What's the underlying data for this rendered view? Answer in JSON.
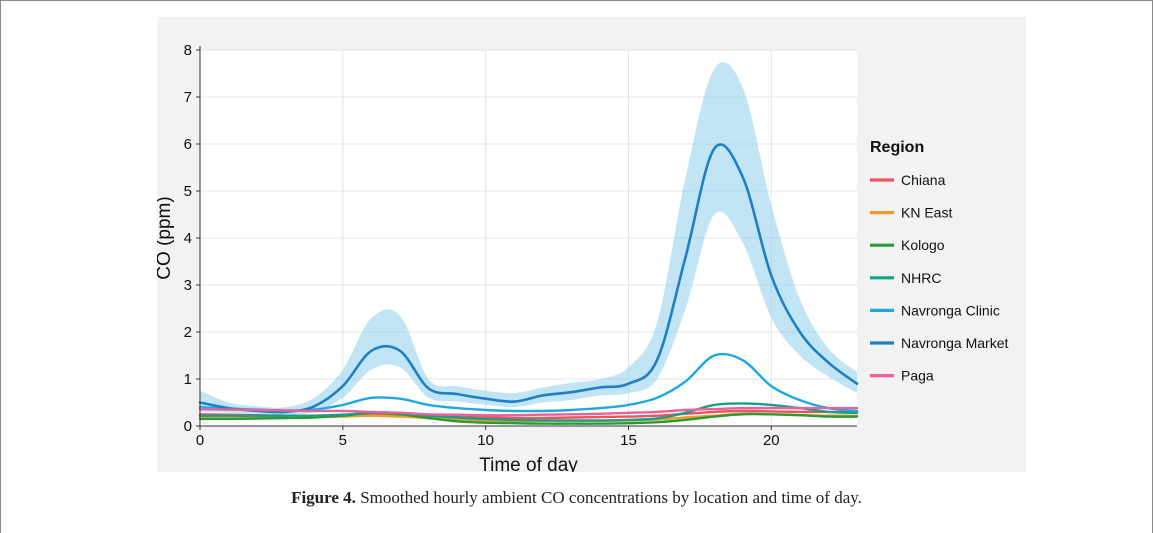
{
  "caption": {
    "label": "Figure 4.",
    "text": "Smoothed hourly ambient CO concentrations by location and time of day."
  },
  "chart_data": {
    "type": "line",
    "xlabel": "Time of day",
    "ylabel": "CO (ppm)",
    "xlim": [
      0,
      23
    ],
    "ylim": [
      0,
      8
    ],
    "x_ticks": [
      0,
      5,
      10,
      15,
      20
    ],
    "y_ticks": [
      0,
      1,
      2,
      3,
      4,
      5,
      6,
      7,
      8
    ],
    "grid": true,
    "legend": {
      "title": "Region",
      "position": "right"
    },
    "series": [
      {
        "name": "Chiana",
        "color": "#f0515e",
        "x": [
          0,
          1,
          2,
          3,
          4,
          5,
          6,
          7,
          8,
          9,
          10,
          11,
          12,
          13,
          14,
          15,
          16,
          17,
          18,
          19,
          20,
          21,
          22,
          23
        ],
        "y": [
          0.25,
          0.24,
          0.23,
          0.22,
          0.22,
          0.23,
          0.24,
          0.23,
          0.22,
          0.2,
          0.18,
          0.17,
          0.17,
          0.18,
          0.19,
          0.2,
          0.22,
          0.26,
          0.3,
          0.32,
          0.31,
          0.3,
          0.3,
          0.3
        ]
      },
      {
        "name": "KN East",
        "color": "#f09a2b",
        "x": [
          0,
          1,
          2,
          3,
          4,
          5,
          6,
          7,
          8,
          9,
          10,
          11,
          12,
          13,
          14,
          15,
          16,
          17,
          18,
          19,
          20,
          21,
          22,
          23
        ],
        "y": [
          0.2,
          0.2,
          0.2,
          0.2,
          0.2,
          0.2,
          0.22,
          0.2,
          0.17,
          0.14,
          0.12,
          0.11,
          0.11,
          0.11,
          0.11,
          0.12,
          0.14,
          0.18,
          0.22,
          0.26,
          0.25,
          0.23,
          0.22,
          0.22
        ]
      },
      {
        "name": "Kologo",
        "color": "#2a9a33",
        "x": [
          0,
          1,
          2,
          3,
          4,
          5,
          6,
          7,
          8,
          9,
          10,
          11,
          12,
          13,
          14,
          15,
          16,
          17,
          18,
          19,
          20,
          21,
          22,
          23
        ],
        "y": [
          0.15,
          0.15,
          0.16,
          0.17,
          0.18,
          0.22,
          0.28,
          0.25,
          0.17,
          0.1,
          0.07,
          0.06,
          0.05,
          0.05,
          0.05,
          0.06,
          0.08,
          0.13,
          0.2,
          0.25,
          0.25,
          0.23,
          0.2,
          0.2
        ]
      },
      {
        "name": "NHRC",
        "color": "#17a087",
        "x": [
          0,
          1,
          2,
          3,
          4,
          5,
          6,
          7,
          8,
          9,
          10,
          11,
          12,
          13,
          14,
          15,
          16,
          17,
          18,
          19,
          20,
          21,
          22,
          23
        ],
        "y": [
          0.22,
          0.22,
          0.22,
          0.22,
          0.22,
          0.24,
          0.28,
          0.27,
          0.22,
          0.18,
          0.15,
          0.13,
          0.12,
          0.12,
          0.12,
          0.13,
          0.16,
          0.28,
          0.45,
          0.48,
          0.45,
          0.38,
          0.3,
          0.28
        ]
      },
      {
        "name": "Navronga Clinic",
        "color": "#1fa8e0",
        "x": [
          0,
          1,
          2,
          3,
          4,
          5,
          6,
          7,
          8,
          9,
          10,
          11,
          12,
          13,
          14,
          15,
          16,
          17,
          18,
          19,
          20,
          21,
          22,
          23
        ],
        "y": [
          0.4,
          0.37,
          0.35,
          0.33,
          0.35,
          0.45,
          0.6,
          0.58,
          0.45,
          0.38,
          0.34,
          0.32,
          0.32,
          0.34,
          0.38,
          0.45,
          0.6,
          0.95,
          1.5,
          1.4,
          0.85,
          0.55,
          0.38,
          0.32
        ]
      },
      {
        "name": "Navronga Market",
        "color": "#1f7fc4",
        "x": [
          0,
          1,
          2,
          3,
          4,
          5,
          6,
          7,
          8,
          9,
          10,
          11,
          12,
          13,
          14,
          15,
          16,
          17,
          18,
          19,
          20,
          21,
          22,
          23
        ],
        "y": [
          0.5,
          0.38,
          0.32,
          0.3,
          0.42,
          0.85,
          1.6,
          1.6,
          0.8,
          0.68,
          0.58,
          0.52,
          0.65,
          0.72,
          0.82,
          0.9,
          1.4,
          3.6,
          5.9,
          5.3,
          3.2,
          2.0,
          1.35,
          0.9
        ],
        "ci_upper": [
          0.75,
          0.5,
          0.42,
          0.4,
          0.6,
          1.2,
          2.3,
          2.35,
          1.0,
          0.85,
          0.75,
          0.7,
          0.82,
          0.92,
          1.0,
          1.25,
          2.2,
          5.3,
          7.6,
          7.2,
          4.7,
          2.7,
          1.65,
          1.15
        ],
        "ci_lower": [
          0.3,
          0.28,
          0.26,
          0.24,
          0.3,
          0.6,
          1.2,
          1.25,
          0.6,
          0.52,
          0.45,
          0.4,
          0.5,
          0.55,
          0.65,
          0.7,
          1.0,
          2.5,
          4.5,
          3.9,
          2.3,
          1.5,
          1.05,
          0.7
        ]
      },
      {
        "name": "Paga",
        "color": "#e8629b",
        "x": [
          0,
          1,
          2,
          3,
          4,
          5,
          6,
          7,
          8,
          9,
          10,
          11,
          12,
          13,
          14,
          15,
          16,
          17,
          18,
          19,
          20,
          21,
          22,
          23
        ],
        "y": [
          0.36,
          0.35,
          0.34,
          0.33,
          0.32,
          0.32,
          0.3,
          0.28,
          0.25,
          0.24,
          0.23,
          0.23,
          0.24,
          0.25,
          0.26,
          0.28,
          0.3,
          0.34,
          0.36,
          0.38,
          0.38,
          0.38,
          0.38,
          0.38
        ]
      }
    ]
  }
}
